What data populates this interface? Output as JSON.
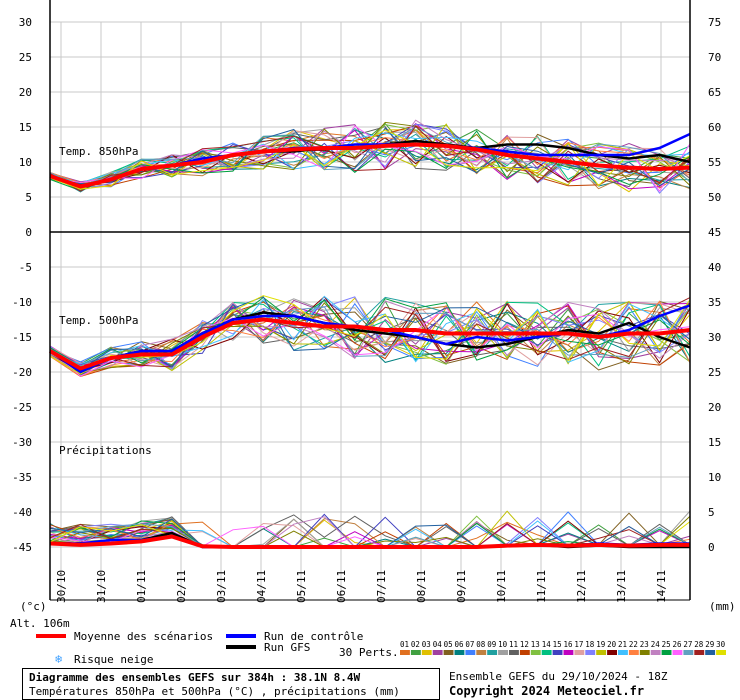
{
  "chart_data": {
    "type": "line",
    "title": "Diagramme des ensembles GEFS sur 384h : 38.1N 8.4W",
    "subtitle": "Températures 850hPa et 500hPa (°C) , précipitations (mm)",
    "run_info": "Ensemble GEFS du 29/10/2024 - 18Z",
    "copyright": "Copyright 2024 Meteociel.fr",
    "altitude_label": "Alt. 106m",
    "left_unit": "(°c)",
    "right_unit": "(mm)",
    "x_labels": [
      "30/10",
      "31/10",
      "01/11",
      "02/11",
      "03/11",
      "04/11",
      "05/11",
      "06/11",
      "07/11",
      "08/11",
      "09/11",
      "10/11",
      "11/11",
      "12/11",
      "13/11",
      "14/11"
    ],
    "left_axis": {
      "ticks": [
        "30",
        "25",
        "20",
        "15",
        "10",
        "5",
        "0",
        "-5",
        "-10",
        "-15",
        "-20",
        "-25",
        "-30",
        "-35",
        "-40",
        "-45"
      ]
    },
    "right_axis": {
      "ticks": [
        "75",
        "70",
        "65",
        "60",
        "55",
        "50",
        "45",
        "40",
        "35",
        "30",
        "25",
        "20",
        "15",
        "10",
        "5",
        "0"
      ]
    },
    "panels": [
      {
        "name": "Temp. 850hPa",
        "ylim": [
          0,
          30
        ]
      },
      {
        "name": "Temp. 500hPa",
        "ylim": [
          -25,
          -5
        ]
      },
      {
        "name": "Précipitations",
        "ylim": [
          0,
          15
        ]
      }
    ],
    "legend": {
      "mean": "Moyenne des scénarios",
      "control": "Run de contrôle",
      "gfs": "Run GFS",
      "snow": "Risque neige",
      "perts_label": "30 Perts."
    },
    "perturbation_ids": [
      "01",
      "02",
      "03",
      "04",
      "05",
      "06",
      "07",
      "08",
      "09",
      "10",
      "11",
      "12",
      "13",
      "14",
      "15",
      "16",
      "17",
      "18",
      "19",
      "20",
      "21",
      "22",
      "23",
      "24",
      "25",
      "26",
      "27",
      "28",
      "29",
      "30"
    ],
    "perturbation_colors": [
      "#e07020",
      "#40a040",
      "#e0c000",
      "#a040a0",
      "#806020",
      "#008080",
      "#4080ff",
      "#c08040",
      "#20a0a0",
      "#a0a0a0",
      "#606060",
      "#c04000",
      "#80c040",
      "#00c080",
      "#4040c0",
      "#c000c0",
      "#e0a0a0",
      "#8080ff",
      "#c0c000",
      "#800000",
      "#40c0ff",
      "#ff8040",
      "#808000",
      "#c080c0",
      "#00a040",
      "#ff60ff",
      "#60a0c0",
      "#a02020",
      "#2060a0",
      "#e0e000"
    ],
    "temp850": {
      "mean": [
        8,
        6.5,
        7.5,
        9,
        9.5,
        10,
        11,
        11.5,
        11.8,
        12,
        12,
        12.3,
        12.5,
        12.3,
        11.8,
        11,
        10.5,
        10,
        9.5,
        9.2,
        9,
        9.2
      ],
      "control": [
        8,
        6.5,
        7.5,
        9,
        9.5,
        10.5,
        11,
        11.5,
        12,
        12,
        12.5,
        12.5,
        12.5,
        12.3,
        12,
        11.5,
        11,
        11,
        11,
        11,
        12,
        14
      ],
      "gfs": [
        8,
        6.5,
        7.5,
        9,
        9.5,
        10,
        11,
        11.5,
        11.5,
        12,
        12,
        12.5,
        13,
        12.5,
        12,
        12.5,
        12.5,
        12,
        11,
        10.5,
        11,
        10
      ]
    },
    "temp500": {
      "mean": [
        -17,
        -19.5,
        -18,
        -17.5,
        -17.5,
        -15,
        -13,
        -12.5,
        -13,
        -13.5,
        -13.5,
        -14,
        -14,
        -14.5,
        -14.5,
        -14.5,
        -14.5,
        -14.5,
        -15,
        -14.5,
        -14.5,
        -14
      ],
      "control": [
        -17,
        -20,
        -18,
        -17,
        -17,
        -14.5,
        -12.5,
        -12,
        -12,
        -13,
        -13.5,
        -14,
        -15,
        -16,
        -15,
        -15.5,
        -15,
        -14.5,
        -15,
        -14,
        -12,
        -10.5
      ],
      "gfs": [
        -17,
        -20,
        -18,
        -17,
        -17,
        -14.5,
        -12.5,
        -11.5,
        -12,
        -13,
        -14,
        -14.5,
        -15,
        -16,
        -16.5,
        -16,
        -15,
        -14,
        -14.5,
        -13,
        -15,
        -16.5
      ]
    },
    "precip": {
      "mean": [
        0.5,
        0.3,
        0.5,
        0.8,
        1.5,
        0.1,
        0,
        0,
        0,
        0,
        0,
        0,
        0,
        0,
        0,
        0.2,
        0.3,
        0.2,
        0.3,
        0.2,
        0.3,
        0.3
      ],
      "control": [
        0.5,
        0.5,
        1,
        1,
        1.5,
        0,
        0,
        0,
        0,
        0,
        0,
        0,
        0,
        0,
        0,
        0.2,
        0.3,
        0.2,
        0.5,
        0.3,
        0.5,
        0.5
      ],
      "gfs": [
        0.5,
        0.3,
        0.5,
        1,
        2,
        0,
        0,
        0,
        0,
        0,
        0,
        0,
        0,
        0,
        0,
        0.1,
        0.3,
        0,
        0.2,
        0,
        0,
        0
      ]
    }
  }
}
